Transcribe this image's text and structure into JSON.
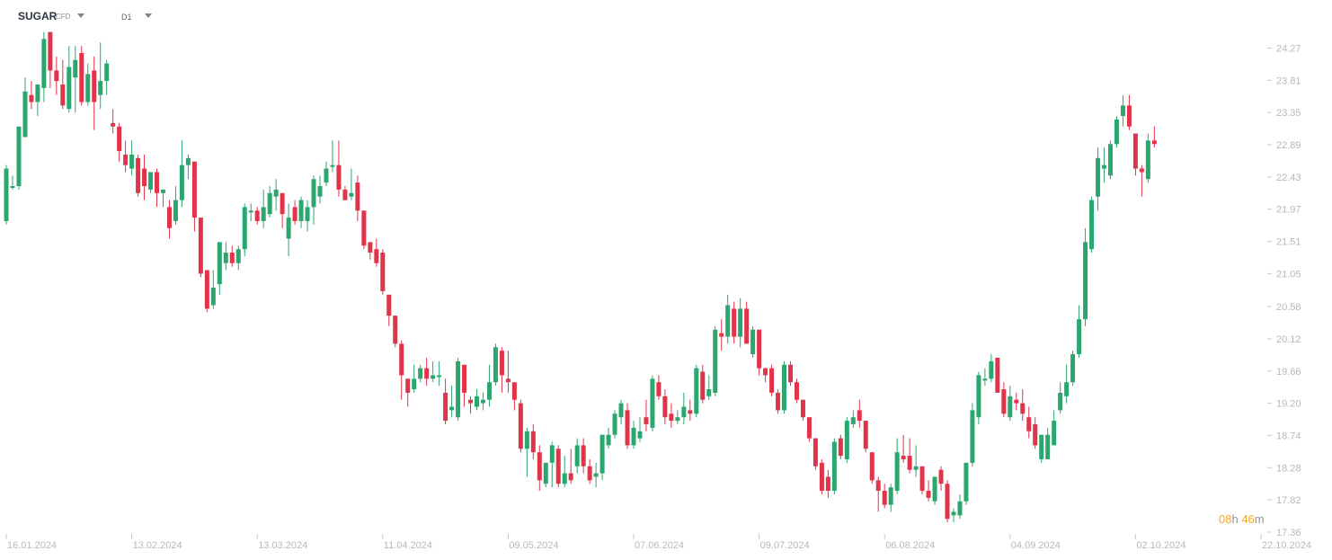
{
  "toolbar": {
    "symbol": "SUGAR",
    "instrument_type": "CFD",
    "timeframe": "D1"
  },
  "countdown": {
    "hours": "08",
    "h_unit": "h",
    "minutes": "46",
    "m_unit": "m"
  },
  "colors": {
    "up": "#2ca66f",
    "down": "#e0344b",
    "axis_text": "#b3b9bf",
    "countdown": "#f5a623"
  },
  "chart_data": {
    "type": "candlestick",
    "title": "",
    "y_ticks": [
      "24.27",
      "23.81",
      "23.35",
      "22.89",
      "22.43",
      "21.97",
      "21.51",
      "21.05",
      "20.58",
      "20.12",
      "19.66",
      "19.20",
      "18.74",
      "18.28",
      "17.82",
      "17.36"
    ],
    "x_ticks": [
      {
        "label": "16.01.2024",
        "index": 0
      },
      {
        "label": "13.02.2024",
        "index": 20
      },
      {
        "label": "13.03.2024",
        "index": 40
      },
      {
        "label": "11.04.2024",
        "index": 60
      },
      {
        "label": "09.05.2024",
        "index": 80
      },
      {
        "label": "07.06.2024",
        "index": 100
      },
      {
        "label": "09.07.2024",
        "index": 120
      },
      {
        "label": "06.08.2024",
        "index": 140
      },
      {
        "label": "04.09.2024",
        "index": 160
      },
      {
        "label": "02.10.2024",
        "index": 180
      },
      {
        "label": "22.10.2024",
        "index": 200
      }
    ],
    "ylim": [
      17.36,
      24.73
    ],
    "candles": [
      [
        21.8,
        22.55,
        22.6,
        21.75
      ],
      [
        22.3,
        22.3,
        22.45,
        22.25
      ],
      [
        22.3,
        23.15,
        23.15,
        22.25
      ],
      [
        23.0,
        23.65,
        23.85,
        23.0
      ],
      [
        23.6,
        23.5,
        23.8,
        23.4
      ],
      [
        23.5,
        23.75,
        23.75,
        23.3
      ],
      [
        23.7,
        24.4,
        24.5,
        23.5
      ],
      [
        24.5,
        23.95,
        24.5,
        23.7
      ],
      [
        23.95,
        23.8,
        24.15,
        23.6
      ],
      [
        23.75,
        23.45,
        24.1,
        23.4
      ],
      [
        23.4,
        24.0,
        24.3,
        23.35
      ],
      [
        23.85,
        24.1,
        24.3,
        23.35
      ],
      [
        24.2,
        23.5,
        24.3,
        23.45
      ],
      [
        23.5,
        23.9,
        24.05,
        23.45
      ],
      [
        23.95,
        23.5,
        24.15,
        23.1
      ],
      [
        23.6,
        23.8,
        24.35,
        23.4
      ],
      [
        23.8,
        24.05,
        24.1,
        23.6
      ],
      [
        23.2,
        23.15,
        23.4,
        23.05
      ],
      [
        23.15,
        22.8,
        23.2,
        22.65
      ],
      [
        22.75,
        22.6,
        22.95,
        22.5
      ],
      [
        22.55,
        22.75,
        22.95,
        22.45
      ],
      [
        22.7,
        22.2,
        22.75,
        22.15
      ],
      [
        22.55,
        22.3,
        22.75,
        22.1
      ],
      [
        22.25,
        22.5,
        22.5,
        22.2
      ],
      [
        22.5,
        22.2,
        22.55,
        22.0
      ],
      [
        22.2,
        22.25,
        22.25,
        22.0
      ],
      [
        22.0,
        21.7,
        22.1,
        21.55
      ],
      [
        21.8,
        22.1,
        22.3,
        21.75
      ],
      [
        22.1,
        22.6,
        22.95,
        22.0
      ],
      [
        22.6,
        22.7,
        22.75,
        22.4
      ],
      [
        22.65,
        21.85,
        22.65,
        21.65
      ],
      [
        21.85,
        21.05,
        21.85,
        21.0
      ],
      [
        21.1,
        20.55,
        21.1,
        20.5
      ],
      [
        20.6,
        20.85,
        21.1,
        20.55
      ],
      [
        20.9,
        21.5,
        21.5,
        20.75
      ],
      [
        21.2,
        21.35,
        21.5,
        21.1
      ],
      [
        21.35,
        21.2,
        21.45,
        21.15
      ],
      [
        21.2,
        21.4,
        21.45,
        21.1
      ],
      [
        21.4,
        22.0,
        22.05,
        21.3
      ],
      [
        21.95,
        21.95,
        22.05,
        21.8
      ],
      [
        21.95,
        21.8,
        22.0,
        21.75
      ],
      [
        21.8,
        22.0,
        22.25,
        21.7
      ],
      [
        21.9,
        22.2,
        22.3,
        21.85
      ],
      [
        22.15,
        22.25,
        22.4,
        21.95
      ],
      [
        22.2,
        21.9,
        22.2,
        21.7
      ],
      [
        21.55,
        21.85,
        22.05,
        21.3
      ],
      [
        22.0,
        21.8,
        22.1,
        21.75
      ],
      [
        21.8,
        22.1,
        22.15,
        21.7
      ],
      [
        21.8,
        22.0,
        22.1,
        21.65
      ],
      [
        22.0,
        22.4,
        22.45,
        21.75
      ],
      [
        22.15,
        22.3,
        22.45,
        22.05
      ],
      [
        22.35,
        22.55,
        22.65,
        22.3
      ],
      [
        22.6,
        22.6,
        22.95,
        22.5
      ],
      [
        22.6,
        22.25,
        22.95,
        22.15
      ],
      [
        22.25,
        22.1,
        22.3,
        22.1
      ],
      [
        22.15,
        22.2,
        22.55,
        22.1
      ],
      [
        22.35,
        21.95,
        22.45,
        21.8
      ],
      [
        21.95,
        21.45,
        21.95,
        21.4
      ],
      [
        21.5,
        21.35,
        21.5,
        21.25
      ],
      [
        21.4,
        21.2,
        21.55,
        21.15
      ],
      [
        21.35,
        20.8,
        21.4,
        20.75
      ],
      [
        20.75,
        20.45,
        20.75,
        20.3
      ],
      [
        20.45,
        20.05,
        20.45,
        20.0
      ],
      [
        20.05,
        19.6,
        20.1,
        19.25
      ],
      [
        19.55,
        19.35,
        19.55,
        19.15
      ],
      [
        19.4,
        19.55,
        19.75,
        19.35
      ],
      [
        19.55,
        19.7,
        19.75,
        19.5
      ],
      [
        19.7,
        19.55,
        19.85,
        19.45
      ],
      [
        19.55,
        19.6,
        19.8,
        19.5
      ],
      [
        19.6,
        19.6,
        19.8,
        19.45
      ],
      [
        19.35,
        18.95,
        19.55,
        18.9
      ],
      [
        19.1,
        19.15,
        19.45,
        19.0
      ],
      [
        19.0,
        19.8,
        19.85,
        18.95
      ],
      [
        19.75,
        19.35,
        19.75,
        19.15
      ],
      [
        19.25,
        19.2,
        19.3,
        19.05
      ],
      [
        19.15,
        19.3,
        19.4,
        19.1
      ],
      [
        19.2,
        19.25,
        19.35,
        19.1
      ],
      [
        19.25,
        19.5,
        19.75,
        19.15
      ],
      [
        19.5,
        20.0,
        20.05,
        19.45
      ],
      [
        19.95,
        19.6,
        20.0,
        19.35
      ],
      [
        19.55,
        19.5,
        19.95,
        19.35
      ],
      [
        19.5,
        19.25,
        19.5,
        19.1
      ],
      [
        19.2,
        18.55,
        19.25,
        18.5
      ],
      [
        18.55,
        18.8,
        18.85,
        18.15
      ],
      [
        18.8,
        18.5,
        18.9,
        18.4
      ],
      [
        18.5,
        18.1,
        18.6,
        17.95
      ],
      [
        18.05,
        18.35,
        18.35,
        18.0
      ],
      [
        18.35,
        18.6,
        18.65,
        18.0
      ],
      [
        18.55,
        18.05,
        18.6,
        18.0
      ],
      [
        18.05,
        18.2,
        18.45,
        18.0
      ],
      [
        18.2,
        18.1,
        18.55,
        18.05
      ],
      [
        18.3,
        18.6,
        18.7,
        18.2
      ],
      [
        18.6,
        18.3,
        18.7,
        18.2
      ],
      [
        18.3,
        18.1,
        18.4,
        18.05
      ],
      [
        18.15,
        18.2,
        18.35,
        18.0
      ],
      [
        18.2,
        18.75,
        18.75,
        18.1
      ],
      [
        18.6,
        18.75,
        18.85,
        18.55
      ],
      [
        18.75,
        19.05,
        19.1,
        18.7
      ],
      [
        19.0,
        19.2,
        19.25,
        18.9
      ],
      [
        19.1,
        18.6,
        19.2,
        18.55
      ],
      [
        18.6,
        18.85,
        18.95,
        18.55
      ],
      [
        18.7,
        18.8,
        19.0,
        18.65
      ],
      [
        19.0,
        18.9,
        19.25,
        18.8
      ],
      [
        18.85,
        19.55,
        19.6,
        18.8
      ],
      [
        19.5,
        19.3,
        19.6,
        19.25
      ],
      [
        19.3,
        19.0,
        19.4,
        18.9
      ],
      [
        19.05,
        18.95,
        19.2,
        18.85
      ],
      [
        18.95,
        19.0,
        19.1,
        18.9
      ],
      [
        19.0,
        19.15,
        19.35,
        18.9
      ],
      [
        19.1,
        19.05,
        19.25,
        18.95
      ],
      [
        19.05,
        19.7,
        19.75,
        19.0
      ],
      [
        19.65,
        19.25,
        19.75,
        19.2
      ],
      [
        19.3,
        19.4,
        19.6,
        19.25
      ],
      [
        19.35,
        20.25,
        20.3,
        19.3
      ],
      [
        20.2,
        20.15,
        20.4,
        19.95
      ],
      [
        20.15,
        20.6,
        20.75,
        20.05
      ],
      [
        20.55,
        20.15,
        20.65,
        20.05
      ],
      [
        20.15,
        20.55,
        20.7,
        20.0
      ],
      [
        20.55,
        20.05,
        20.65,
        20.05
      ],
      [
        19.9,
        20.25,
        20.3,
        19.85
      ],
      [
        20.25,
        19.7,
        20.25,
        19.6
      ],
      [
        19.7,
        19.6,
        19.7,
        19.5
      ],
      [
        19.7,
        19.35,
        19.75,
        19.3
      ],
      [
        19.35,
        19.1,
        19.4,
        19.05
      ],
      [
        19.1,
        19.75,
        19.8,
        19.05
      ],
      [
        19.75,
        19.5,
        19.8,
        19.45
      ],
      [
        19.5,
        19.25,
        19.55,
        19.2
      ],
      [
        19.25,
        19.0,
        19.25,
        18.95
      ],
      [
        19.0,
        18.7,
        19.0,
        18.65
      ],
      [
        18.7,
        18.3,
        18.7,
        18.25
      ],
      [
        18.35,
        17.95,
        18.4,
        17.9
      ],
      [
        18.15,
        17.95,
        18.25,
        17.85
      ],
      [
        17.95,
        18.65,
        18.7,
        17.9
      ],
      [
        18.7,
        18.45,
        18.75,
        18.4
      ],
      [
        18.4,
        18.95,
        19.0,
        18.35
      ],
      [
        18.9,
        19.0,
        19.1,
        18.85
      ],
      [
        19.1,
        18.95,
        19.25,
        18.85
      ],
      [
        18.95,
        18.55,
        18.95,
        18.5
      ],
      [
        18.5,
        18.1,
        18.5,
        18.05
      ],
      [
        18.1,
        17.95,
        18.15,
        17.65
      ],
      [
        17.95,
        17.75,
        18.05,
        17.7
      ],
      [
        17.75,
        18.0,
        18.05,
        17.65
      ],
      [
        17.95,
        18.5,
        18.7,
        17.9
      ],
      [
        18.45,
        18.4,
        18.75,
        18.35
      ],
      [
        18.45,
        18.25,
        18.7,
        18.2
      ],
      [
        18.25,
        18.3,
        18.6,
        18.15
      ],
      [
        18.3,
        17.95,
        18.3,
        17.9
      ],
      [
        17.95,
        17.85,
        18.1,
        17.8
      ],
      [
        17.8,
        18.15,
        18.15,
        17.75
      ],
      [
        18.25,
        18.05,
        18.3,
        17.95
      ],
      [
        18.05,
        17.55,
        18.1,
        17.5
      ],
      [
        17.6,
        17.65,
        17.7,
        17.5
      ],
      [
        17.6,
        17.8,
        17.9,
        17.55
      ],
      [
        17.8,
        18.35,
        18.35,
        17.75
      ],
      [
        18.35,
        19.1,
        19.2,
        18.3
      ],
      [
        19.0,
        19.6,
        19.65,
        18.9
      ],
      [
        19.55,
        19.55,
        19.7,
        19.45
      ],
      [
        19.55,
        19.8,
        19.9,
        19.5
      ],
      [
        19.85,
        19.35,
        19.85,
        19.35
      ],
      [
        19.4,
        19.05,
        19.5,
        19.0
      ],
      [
        19.0,
        19.3,
        19.45,
        18.95
      ],
      [
        19.25,
        19.2,
        19.35,
        19.1
      ],
      [
        19.2,
        19.05,
        19.4,
        18.95
      ],
      [
        19.0,
        18.8,
        19.15,
        18.7
      ],
      [
        18.9,
        18.6,
        19.0,
        18.55
      ],
      [
        18.4,
        18.75,
        18.75,
        18.35
      ],
      [
        18.4,
        18.75,
        18.85,
        18.4
      ],
      [
        18.6,
        18.95,
        19.1,
        18.6
      ],
      [
        19.1,
        19.35,
        19.5,
        19.05
      ],
      [
        19.3,
        19.5,
        19.75,
        19.2
      ],
      [
        19.5,
        19.9,
        19.95,
        19.45
      ],
      [
        19.9,
        20.4,
        20.6,
        19.85
      ],
      [
        20.4,
        21.5,
        21.7,
        20.3
      ],
      [
        21.4,
        22.1,
        22.15,
        21.35
      ],
      [
        22.15,
        22.7,
        22.85,
        21.95
      ],
      [
        22.55,
        22.6,
        22.85,
        22.35
      ],
      [
        22.45,
        22.9,
        22.95,
        22.4
      ],
      [
        22.9,
        23.25,
        23.3,
        22.85
      ],
      [
        23.3,
        23.45,
        23.6,
        23.15
      ],
      [
        23.45,
        23.15,
        23.6,
        23.1
      ],
      [
        23.05,
        22.55,
        23.05,
        22.45
      ],
      [
        22.55,
        22.5,
        22.6,
        22.15
      ],
      [
        22.4,
        22.95,
        23.05,
        22.35
      ],
      [
        22.95,
        22.9,
        23.15,
        22.85
      ]
    ]
  }
}
